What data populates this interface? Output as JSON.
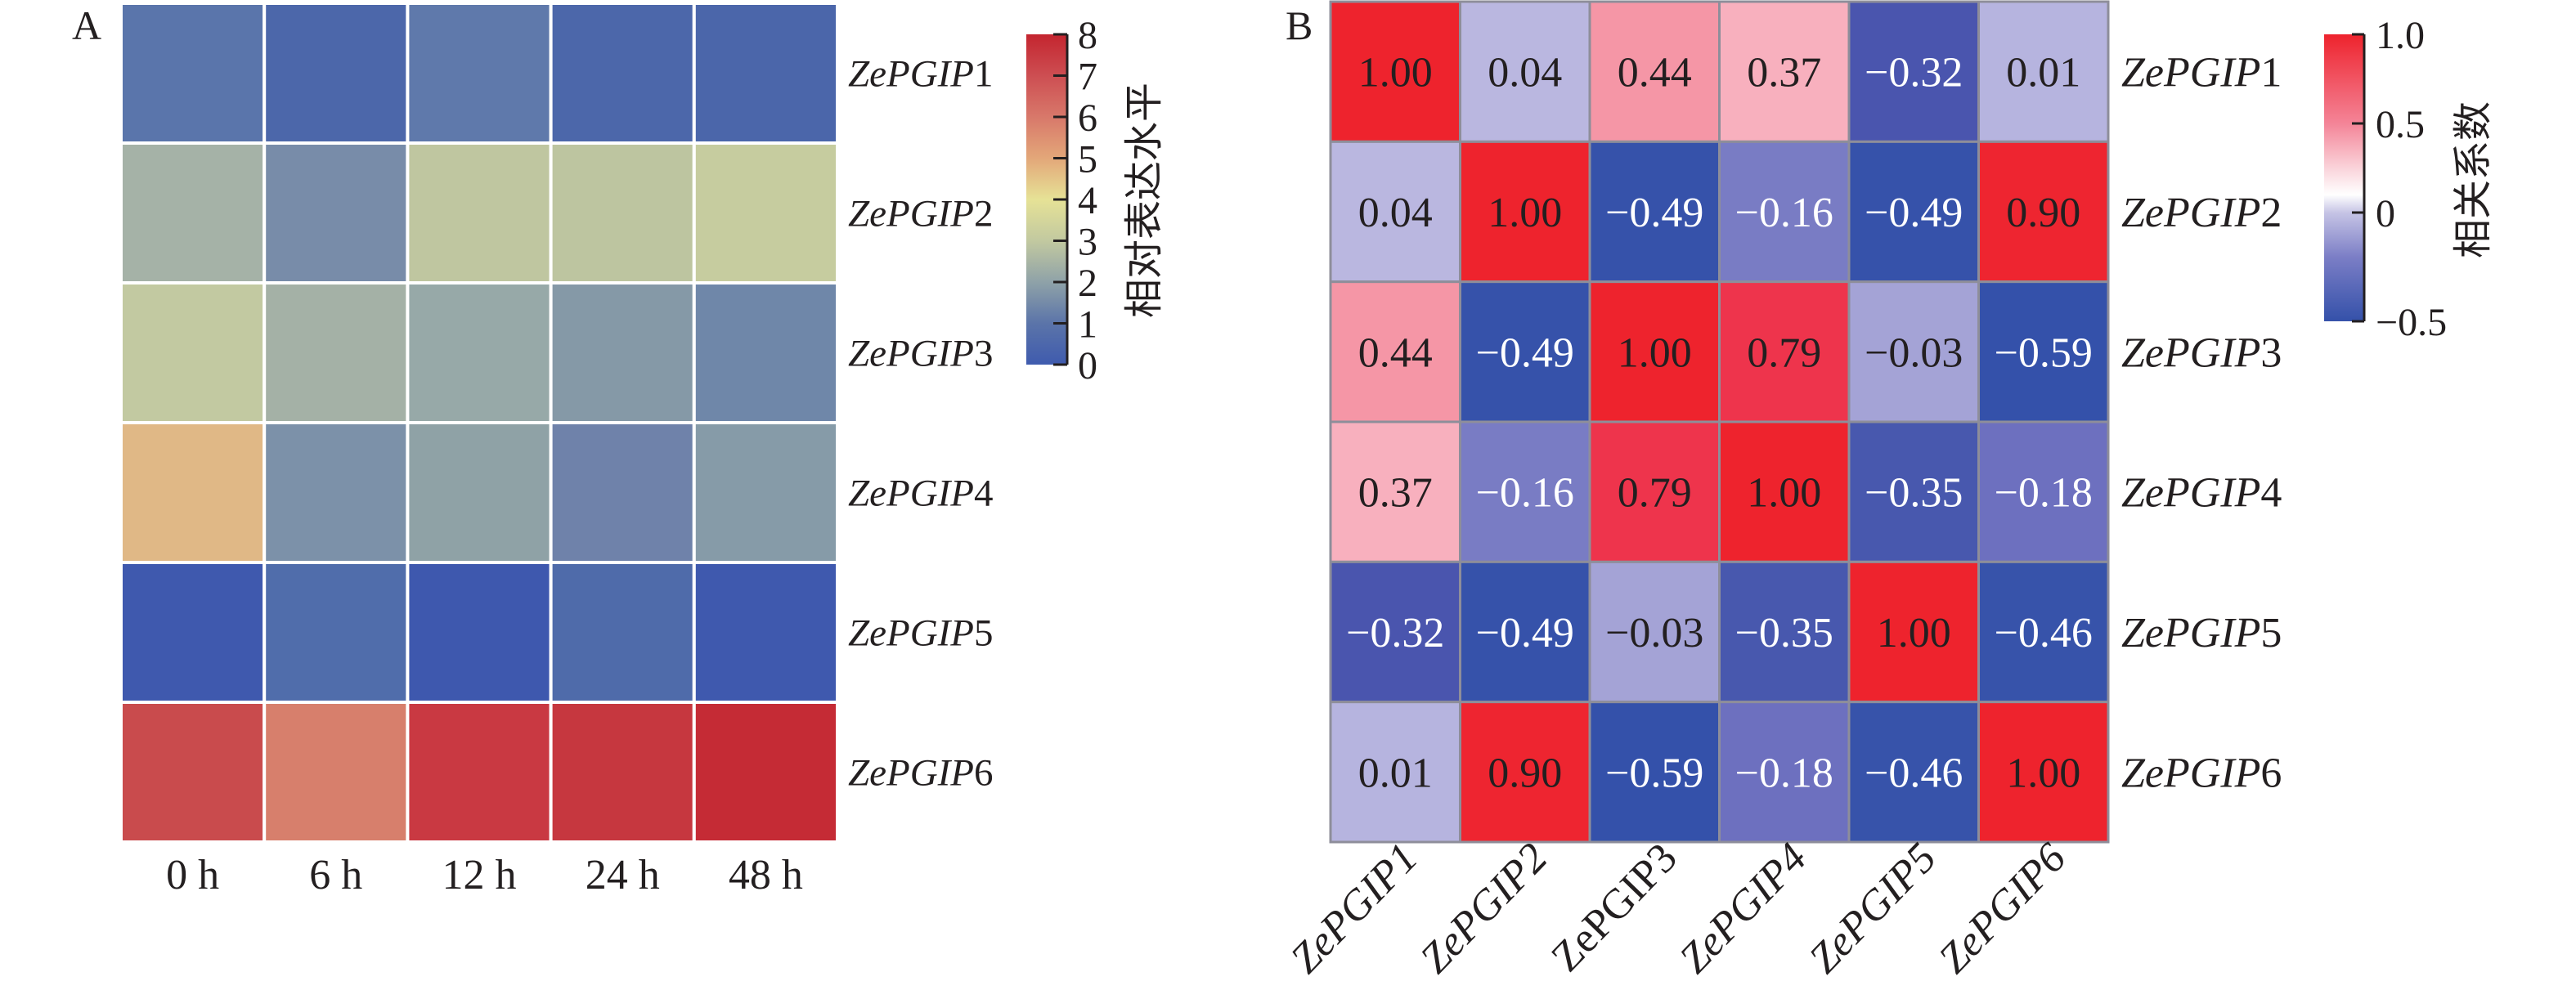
{
  "chart_data": [
    {
      "panel_label": "A",
      "type": "heatmap",
      "title": "",
      "rows": [
        "ZePGIP1",
        "ZePGIP2",
        "ZePGIP3",
        "ZePGIP4",
        "ZePGIP5",
        "ZePGIP6"
      ],
      "row_label_parts": [
        {
          "italic": "ZePGIP",
          "plain": "1"
        },
        {
          "italic": "ZePGIP",
          "plain": "2"
        },
        {
          "italic": "ZePGIP",
          "plain": "3"
        },
        {
          "italic": "ZePGIP",
          "plain": "4"
        },
        {
          "italic": "ZePGIP",
          "plain": "5"
        },
        {
          "italic": "ZePGIP",
          "plain": "6"
        }
      ],
      "columns": [
        "0 h",
        "6 h",
        "12 h",
        "24 h",
        "48 h"
      ],
      "values": [
        [
          0.8,
          0.4,
          0.9,
          0.4,
          0.4
        ],
        [
          2.3,
          1.4,
          3.0,
          2.9,
          3.2
        ],
        [
          3.0,
          2.3,
          2.0,
          1.6,
          1.1
        ],
        [
          4.7,
          1.5,
          1.8,
          1.0,
          1.6
        ],
        [
          0.1,
          0.5,
          0.0,
          0.4,
          0.1
        ],
        [
          6.9,
          6.0,
          7.4,
          7.4,
          7.8
        ]
      ],
      "cell_colors": [
        [
          "#5A75AB",
          "#4C67AA",
          "#5F79AB",
          "#4C67AA",
          "#4B66AA"
        ],
        [
          "#A5B2A7",
          "#788CA9",
          "#BFC6A0",
          "#BDC5A0",
          "#C6CC9F"
        ],
        [
          "#C2C9A1",
          "#A4B1A6",
          "#97A9A8",
          "#8599A7",
          "#6F87A9"
        ],
        [
          "#E0B886",
          "#7C91A9",
          "#8FA2A6",
          "#6F82AA",
          "#869BA8"
        ],
        [
          "#3F59AE",
          "#506DAB",
          "#3E58AE",
          "#4F6BAA",
          "#3F59AE"
        ],
        [
          "#C94B4D",
          "#D77F6C",
          "#C93942",
          "#C6373F",
          "#C52B35"
        ]
      ],
      "colorbar": {
        "title": "相对表达水平",
        "min": 0,
        "max": 8,
        "ticks": [
          0,
          1,
          2,
          3,
          4,
          5,
          6,
          7,
          8
        ],
        "stops": [
          {
            "v": 0,
            "color": "#3F5BAE"
          },
          {
            "v": 1,
            "color": "#5B74A9"
          },
          {
            "v": 2,
            "color": "#8FA2A8"
          },
          {
            "v": 3,
            "color": "#C2C9A0"
          },
          {
            "v": 4,
            "color": "#E6E296"
          },
          {
            "v": 5,
            "color": "#E3A779"
          },
          {
            "v": 6,
            "color": "#D8786A"
          },
          {
            "v": 7,
            "color": "#CD4E52"
          },
          {
            "v": 8,
            "color": "#C4252F"
          }
        ]
      },
      "grid_line_color": "#FFFFFF"
    },
    {
      "panel_label": "B",
      "type": "heatmap",
      "title": "",
      "rows": [
        "ZePGIP1",
        "ZePGIP2",
        "ZePGIP3",
        "ZePGIP4",
        "ZePGIP5",
        "ZePGIP6"
      ],
      "row_label_parts": [
        {
          "italic": "ZePGIP",
          "plain": "1"
        },
        {
          "italic": "ZePGIP",
          "plain": "2"
        },
        {
          "italic": "ZePGIP",
          "plain": "3"
        },
        {
          "italic": "ZePGIP",
          "plain": "4"
        },
        {
          "italic": "ZePGIP",
          "plain": "5"
        },
        {
          "italic": "ZePGIP",
          "plain": "6"
        }
      ],
      "columns": [
        "ZePGIP1",
        "ZePGIP2",
        "ZePGIP3",
        "ZePGIP4",
        "ZePGIP5",
        "ZePGIP6"
      ],
      "column_label_italic": [
        true,
        true,
        false,
        true,
        true,
        true
      ],
      "values": [
        [
          1.0,
          0.04,
          0.44,
          0.37,
          -0.32,
          0.01
        ],
        [
          0.04,
          1.0,
          -0.49,
          -0.16,
          -0.49,
          0.9
        ],
        [
          0.44,
          -0.49,
          1.0,
          0.79,
          -0.03,
          -0.59
        ],
        [
          0.37,
          -0.16,
          0.79,
          1.0,
          -0.35,
          -0.18
        ],
        [
          -0.32,
          -0.49,
          -0.03,
          -0.35,
          1.0,
          -0.46
        ],
        [
          0.01,
          0.9,
          -0.59,
          -0.18,
          -0.46,
          1.0
        ]
      ],
      "value_labels": [
        [
          "1.00",
          "0.04",
          "0.44",
          "0.37",
          "−0.32",
          "0.01"
        ],
        [
          "0.04",
          "1.00",
          "−0.49",
          "−0.16",
          "−0.49",
          "0.90"
        ],
        [
          "0.44",
          "−0.49",
          "1.00",
          "0.79",
          "−0.03",
          "−0.59"
        ],
        [
          "0.37",
          "−0.16",
          "0.79",
          "1.00",
          "−0.35",
          "−0.18"
        ],
        [
          "−0.32",
          "−0.49",
          "−0.03",
          "−0.35",
          "1.00",
          "−0.46"
        ],
        [
          "0.01",
          "0.90",
          "−0.59",
          "−0.18",
          "−0.46",
          "1.00"
        ]
      ],
      "cell_colors": [
        [
          "#EE232D",
          "#BAB7E0",
          "#F596A6",
          "#F8B0BE",
          "#4A55AE",
          "#B6B4DF"
        ],
        [
          "#BAB7E0",
          "#EE232D",
          "#3652AA",
          "#797CC4",
          "#3652AA",
          "#EE2530"
        ],
        [
          "#F596A6",
          "#3652AA",
          "#EE232D",
          "#EE344C",
          "#A4A3D6",
          "#3451AA"
        ],
        [
          "#F8B0BE",
          "#797CC4",
          "#EE344C",
          "#EE232D",
          "#4858AE",
          "#6D70BF"
        ],
        [
          "#4A55AE",
          "#3652AA",
          "#A4A3D6",
          "#4858AE",
          "#EE232D",
          "#3753AA"
        ],
        [
          "#B6B4DF",
          "#EE2530",
          "#3451AA",
          "#6D70BF",
          "#3753AA",
          "#EE232D"
        ]
      ],
      "text_colors": {
        "light": "#FFFFFF",
        "dark": "#231F20"
      },
      "colorbar": {
        "title": "相关系数",
        "tick_labels": [
          "1.0",
          "0.5",
          "0",
          "−0.5"
        ],
        "ticks": [
          1.0,
          0.5,
          0,
          -0.5
        ],
        "stops": [
          {
            "v": 1.0,
            "color": "#EE232D"
          },
          {
            "v": 0.5,
            "color": "#F48497"
          },
          {
            "v": 0.25,
            "color": "#FAD3DA"
          },
          {
            "v": 0.1,
            "color": "#FFFFFF"
          },
          {
            "v": 0.0,
            "color": "#C6C4E5"
          },
          {
            "v": -0.25,
            "color": "#7B7EC6"
          },
          {
            "v": -0.6,
            "color": "#3652AA"
          }
        ]
      },
      "grid_line_color": "#8E8E9A"
    }
  ]
}
